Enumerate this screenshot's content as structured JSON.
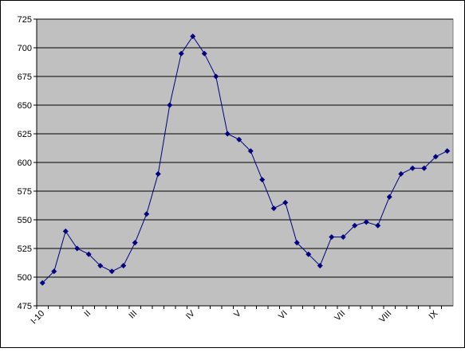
{
  "chart_data": {
    "type": "line",
    "categories": [
      "I-10",
      null,
      null,
      null,
      "II",
      null,
      null,
      null,
      "III",
      null,
      null,
      null,
      null,
      "IV",
      null,
      null,
      null,
      "V",
      null,
      null,
      null,
      "VI",
      null,
      null,
      null,
      null,
      "VII",
      null,
      null,
      null,
      "VIII",
      null,
      null,
      null,
      "IX",
      null
    ],
    "values": [
      495,
      505,
      540,
      525,
      520,
      510,
      505,
      510,
      530,
      555,
      590,
      650,
      695,
      710,
      695,
      675,
      625,
      620,
      610,
      585,
      560,
      565,
      530,
      520,
      510,
      535,
      535,
      545,
      548,
      545,
      570,
      590,
      595,
      595,
      605,
      610
    ],
    "color": "#000080",
    "ylim": [
      475,
      725
    ],
    "yticks": [
      475,
      500,
      525,
      550,
      575,
      600,
      625,
      650,
      675,
      700,
      725
    ],
    "grid": true
  }
}
